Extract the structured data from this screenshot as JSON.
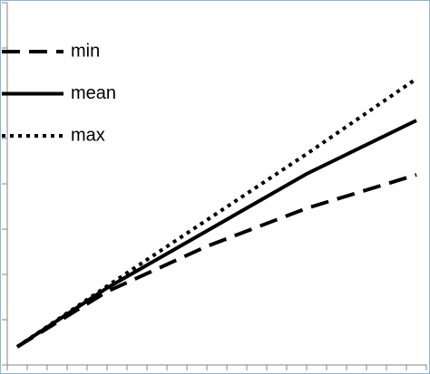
{
  "chart_data": {
    "type": "line",
    "x": [
      0.5,
      5,
      10,
      15,
      20.5
    ],
    "series": [
      {
        "name": "min",
        "color": "#000000",
        "dash": "dashed",
        "values": [
          0.4,
          1.62,
          2.62,
          3.46,
          4.2
        ]
      },
      {
        "name": "mean",
        "color": "#000000",
        "dash": "solid",
        "values": [
          0.4,
          1.7,
          2.96,
          4.22,
          5.4
        ]
      },
      {
        "name": "max",
        "color": "#000000",
        "dash": "dotted",
        "values": [
          0.4,
          1.74,
          3.2,
          4.66,
          6.32
        ]
      }
    ],
    "xlim": [
      0,
      21
    ],
    "xticks": [
      0,
      1,
      2,
      3,
      4,
      5,
      6,
      7,
      8,
      9,
      10,
      11,
      12,
      13,
      14,
      15,
      16,
      17,
      18,
      19,
      20,
      21
    ],
    "ylim": [
      0,
      8
    ],
    "yticks": [
      0,
      1,
      2,
      3,
      4,
      5,
      6,
      7,
      8
    ],
    "legend": "top-left"
  }
}
